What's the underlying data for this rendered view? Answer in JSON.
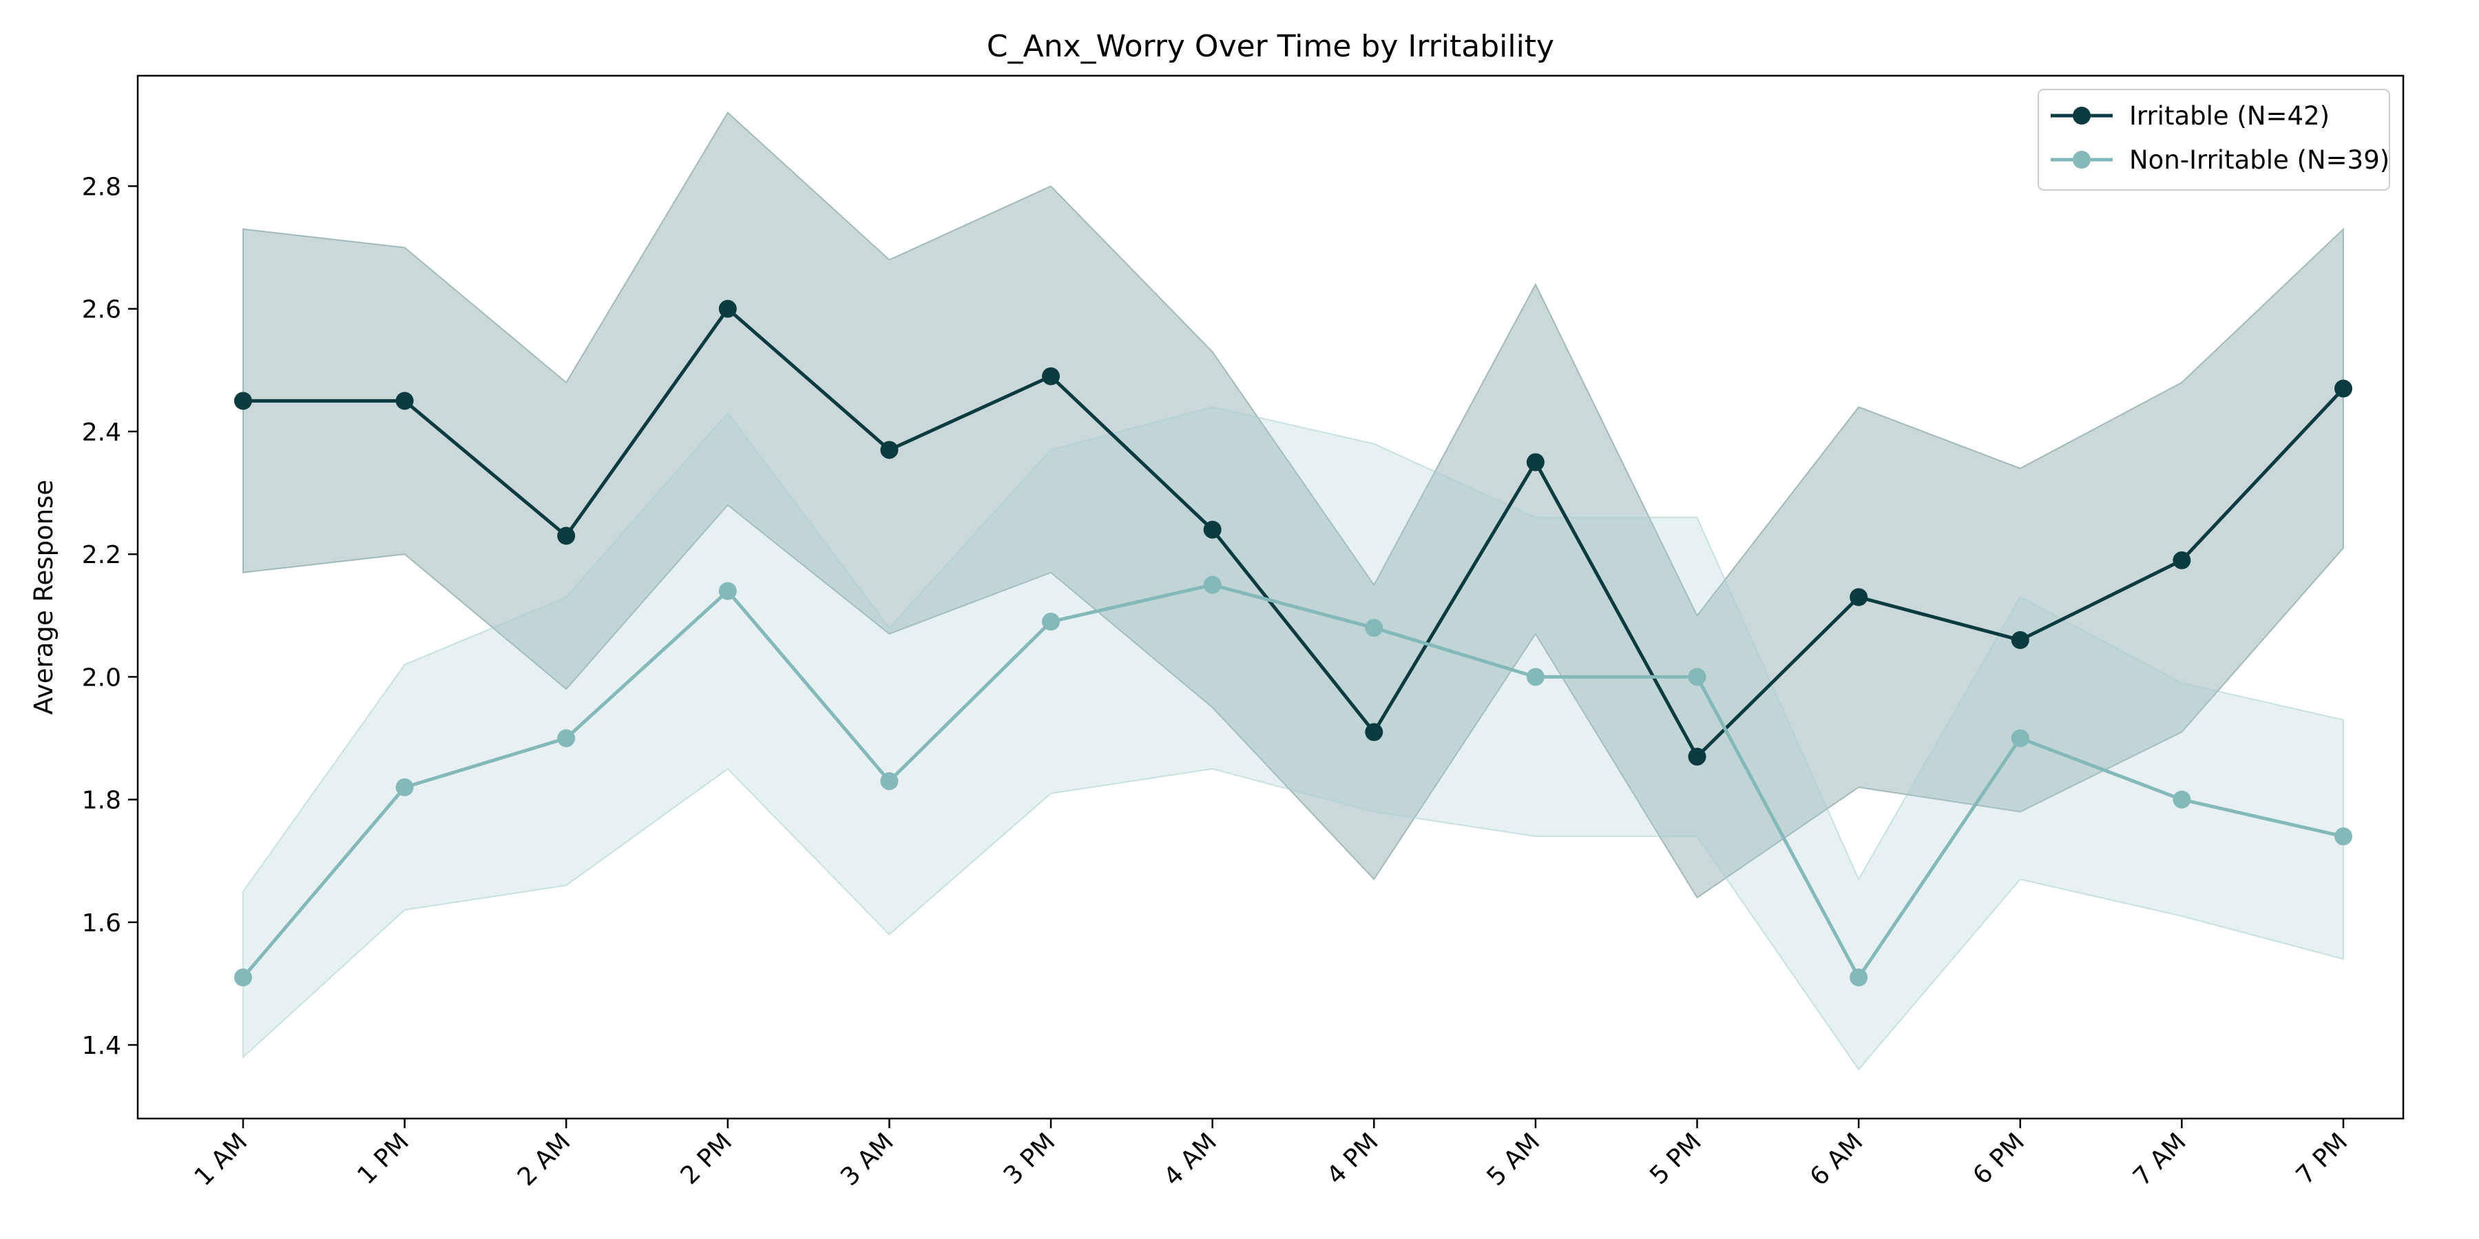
{
  "chart_data": {
    "type": "line",
    "title": "C_Anx_Worry Over Time by Irritability",
    "xlabel": "",
    "ylabel": "Average Response",
    "categories": [
      "1 AM",
      "1 PM",
      "2 AM",
      "2 PM",
      "3 AM",
      "3 PM",
      "4 AM",
      "4 PM",
      "5 AM",
      "5 PM",
      "6 AM",
      "6 PM",
      "7 AM",
      "7 PM"
    ],
    "ylim": [
      1.28,
      2.98
    ],
    "yticks": [
      "1.4",
      "1.6",
      "1.8",
      "2.0",
      "2.2",
      "2.4",
      "2.6",
      "2.8"
    ],
    "grid": false,
    "legend_position": "top-right",
    "series": [
      {
        "name": "Irritable (N=42)",
        "color": "#0b3b40",
        "band_color": "#6f9495",
        "values": [
          2.45,
          2.45,
          2.23,
          2.6,
          2.37,
          2.49,
          2.24,
          1.91,
          2.35,
          1.87,
          2.13,
          2.06,
          2.19,
          2.47
        ],
        "upper": [
          2.73,
          2.7,
          2.48,
          2.92,
          2.68,
          2.8,
          2.53,
          2.15,
          2.64,
          2.1,
          2.44,
          2.34,
          2.48,
          2.73
        ],
        "lower": [
          2.17,
          2.2,
          1.98,
          2.28,
          2.07,
          2.17,
          1.95,
          1.67,
          2.07,
          1.64,
          1.82,
          1.78,
          1.91,
          2.21
        ]
      },
      {
        "name": "Non-Irritable (N=39)",
        "color": "#85b8bb",
        "band_color": "#a8cdcf",
        "values": [
          1.51,
          1.82,
          1.9,
          2.14,
          1.83,
          2.09,
          2.15,
          2.08,
          2.0,
          2.0,
          1.51,
          1.9,
          1.8,
          1.74
        ],
        "upper": [
          1.65,
          2.02,
          2.13,
          2.43,
          2.08,
          2.37,
          2.44,
          2.38,
          2.26,
          2.26,
          1.67,
          2.13,
          1.99,
          1.93
        ],
        "lower": [
          1.38,
          1.62,
          1.66,
          1.85,
          1.58,
          1.81,
          1.85,
          1.78,
          1.74,
          1.74,
          1.36,
          1.67,
          1.61,
          1.54
        ]
      }
    ]
  }
}
